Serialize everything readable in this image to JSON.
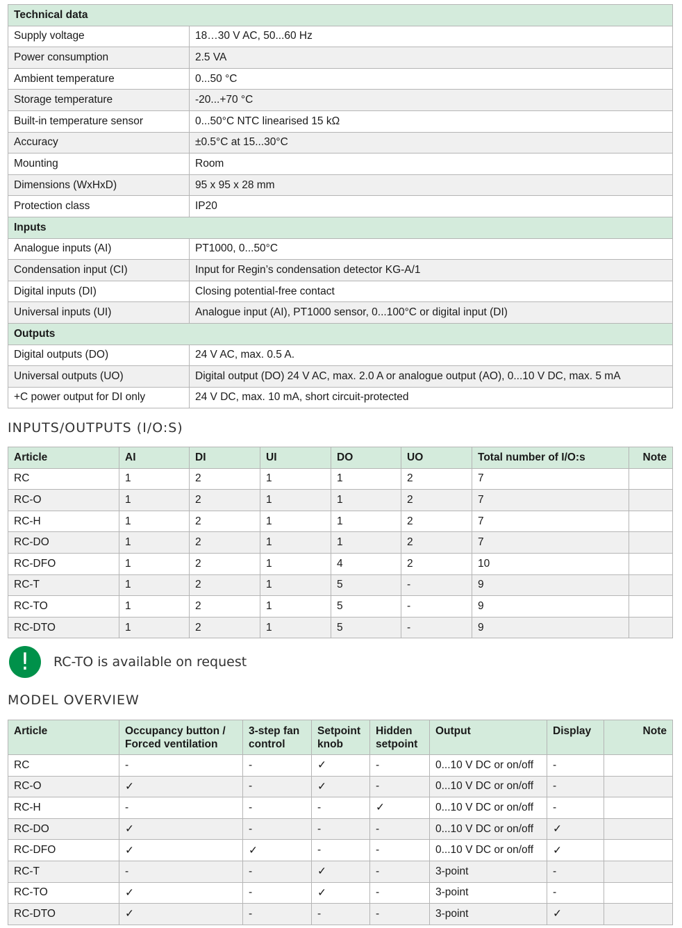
{
  "technical": {
    "sections": [
      {
        "title": "Technical data",
        "rows": [
          [
            "Supply voltage",
            "18…30 V AC, 50...60 Hz"
          ],
          [
            "Power consumption",
            "2.5 VA"
          ],
          [
            "Ambient temperature",
            "0...50 °C"
          ],
          [
            "Storage temperature",
            "-20...+70 °C"
          ],
          [
            "Built-in temperature sensor",
            "0...50°C NTC linearised 15 kΩ"
          ],
          [
            "Accuracy",
            "±0.5°C at 15...30°C"
          ],
          [
            "Mounting",
            "Room"
          ],
          [
            "Dimensions (WxHxD)",
            "95 x 95 x 28 mm"
          ],
          [
            "Protection class",
            "IP20"
          ]
        ]
      },
      {
        "title": "Inputs",
        "rows": [
          [
            "Analogue inputs (AI)",
            "PT1000, 0...50°C"
          ],
          [
            "Condensation input (CI)",
            "Input for Regin’s condensation detector KG-A/1"
          ],
          [
            "Digital inputs (DI)",
            "Closing potential-free contact"
          ],
          [
            "Universal inputs (UI)",
            "Analogue input (AI), PT1000 sensor, 0...100°C or digital input (DI)"
          ]
        ]
      },
      {
        "title": "Outputs",
        "rows": [
          [
            "Digital outputs (DO)",
            "24 V AC, max. 0.5 A."
          ],
          [
            "Universal outputs (UO)",
            "Digital output (DO) 24 V AC, max. 2.0 A or analogue output (AO), 0...10 V DC, max. 5 mA"
          ],
          [
            "+C power output for DI only",
            "24 V DC, max. 10 mA, short circuit-protected"
          ]
        ]
      }
    ]
  },
  "io": {
    "heading": "INPUTS/OUTPUTS (I/O:S)",
    "headers": [
      "Article",
      "AI",
      "DI",
      "UI",
      "DO",
      "UO",
      "Total number of I/O:s",
      "Note"
    ],
    "rows": [
      [
        "RC",
        "1",
        "2",
        "1",
        "1",
        "2",
        "7",
        ""
      ],
      [
        "RC-O",
        "1",
        "2",
        "1",
        "1",
        "2",
        "7",
        ""
      ],
      [
        "RC-H",
        "1",
        "2",
        "1",
        "1",
        "2",
        "7",
        ""
      ],
      [
        "RC-DO",
        "1",
        "2",
        "1",
        "1",
        "2",
        "7",
        ""
      ],
      [
        "RC-DFO",
        "1",
        "2",
        "1",
        "4",
        "2",
        "10",
        ""
      ],
      [
        "RC-T",
        "1",
        "2",
        "1",
        "5",
        "-",
        "9",
        ""
      ],
      [
        "RC-TO",
        "1",
        "2",
        "1",
        "5",
        "-",
        "9",
        ""
      ],
      [
        "RC-DTO",
        "1",
        "2",
        "1",
        "5",
        "-",
        "9",
        ""
      ]
    ]
  },
  "notice": {
    "icon": "exclamation-icon",
    "color": "#00914a",
    "text": "RC-TO is available on request"
  },
  "models": {
    "heading": "MODEL OVERVIEW",
    "headers": [
      "Article",
      "Occupancy button / Forced ventilation",
      "3-step fan control",
      "Setpoint knob",
      "Hidden setpoint",
      "Output",
      "Display",
      "Note"
    ],
    "rows": [
      [
        "RC",
        "-",
        "-",
        "✓",
        "-",
        "0...10 V DC or on/off",
        "-",
        ""
      ],
      [
        "RC-O",
        "✓",
        "-",
        "✓",
        "-",
        "0...10 V DC or on/off",
        "-",
        ""
      ],
      [
        "RC-H",
        "-",
        "-",
        "-",
        "✓",
        "0...10 V DC or on/off",
        "-",
        ""
      ],
      [
        "RC-DO",
        "✓",
        "-",
        "-",
        "-",
        "0...10 V DC or on/off",
        "✓",
        ""
      ],
      [
        "RC-DFO",
        "✓",
        "✓",
        "-",
        "-",
        "0...10 V DC or on/off",
        "✓",
        ""
      ],
      [
        "RC-T",
        "-",
        "-",
        "✓",
        "-",
        "3-point",
        "-",
        ""
      ],
      [
        "RC-TO",
        "✓",
        "-",
        "✓",
        "-",
        "3-point",
        "-",
        ""
      ],
      [
        "RC-DTO",
        "✓",
        "-",
        "-",
        "-",
        "3-point",
        "✓",
        ""
      ]
    ]
  },
  "colors": {
    "header_bg": "#d4ebdc",
    "alt_row": "#f0f0f0",
    "border": "#b5b5b5"
  }
}
